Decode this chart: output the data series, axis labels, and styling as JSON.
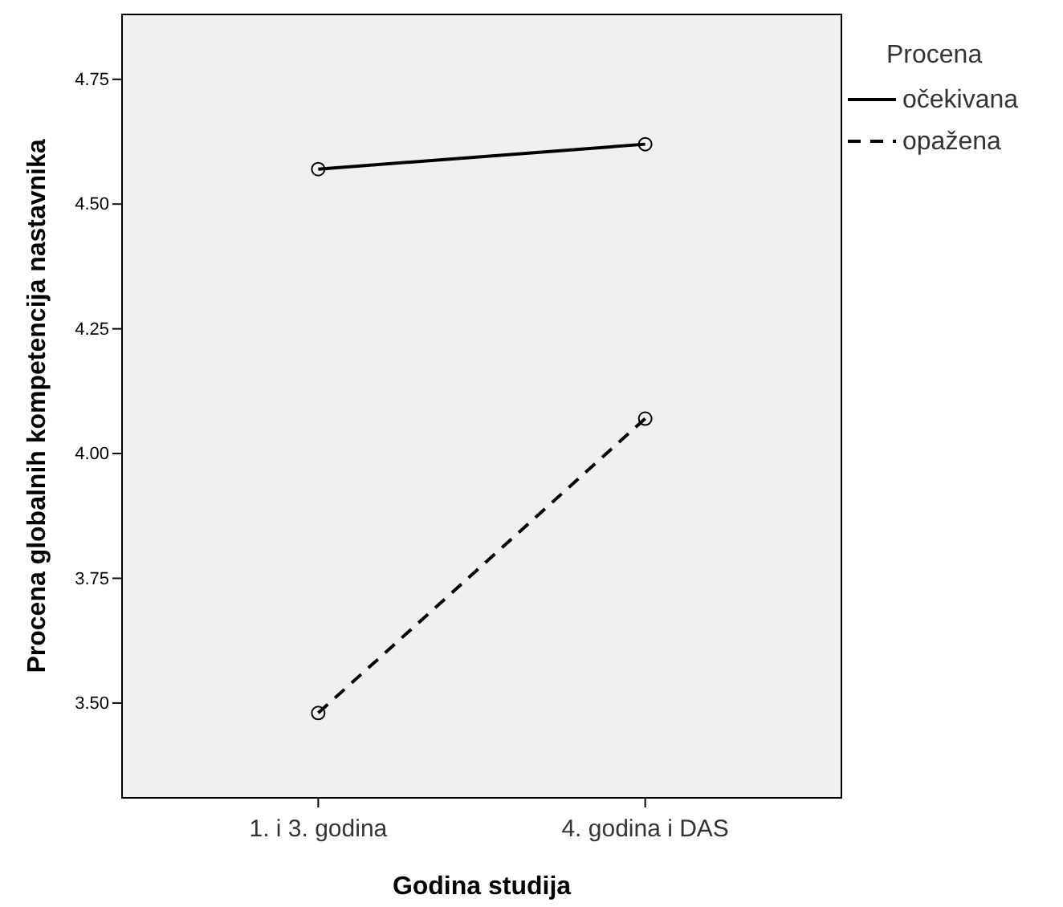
{
  "chart_data": {
    "type": "line",
    "xlabel": "Godina studija",
    "ylabel": "Procena globalnih kompetencija nastavnika",
    "legend_title": "Procena",
    "categories": [
      "1. i 3. godina",
      "4. godina i DAS"
    ],
    "series": [
      {
        "name": "očekivana",
        "color": "#000000",
        "values": [
          4.57,
          4.62
        ],
        "line_style": "solid"
      },
      {
        "name": "opažena",
        "color": "#000000",
        "values": [
          3.48,
          4.07
        ],
        "line_style": "dashed"
      }
    ],
    "ylim": [
      3.31,
      4.88
    ],
    "yticks": [
      {
        "value": 3.5,
        "label": "3.50"
      },
      {
        "value": 3.75,
        "label": "3.75"
      },
      {
        "value": 4,
        "label": "4.00"
      },
      {
        "value": 4.25,
        "label": "4.25"
      },
      {
        "value": 4.5,
        "label": "4.50"
      },
      {
        "value": 4.75,
        "label": "4.75"
      }
    ],
    "grid": false,
    "legend": "top right",
    "marker": "circle"
  }
}
